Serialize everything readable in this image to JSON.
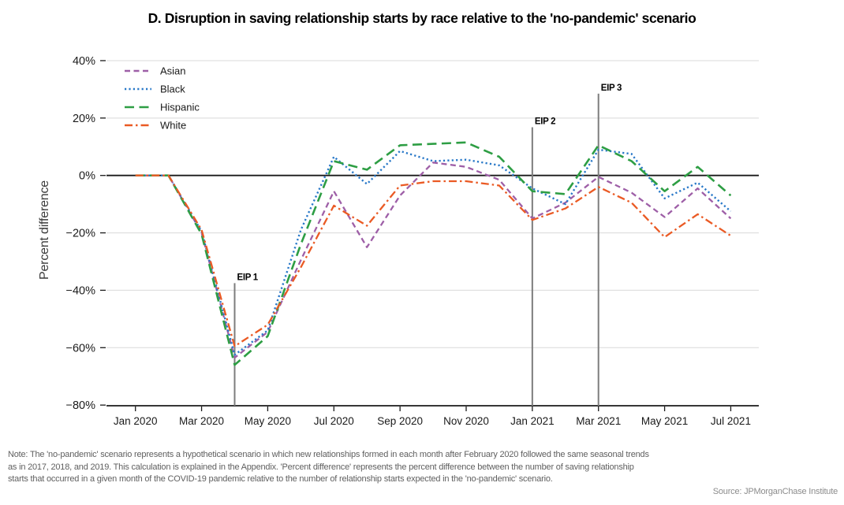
{
  "note": {
    "line1": "Note: The 'no-pandemic' scenario represents a hypothetical scenario in which new relationships formed in each month after February 2020 followed the same seasonal trends",
    "line2": "as in 2017, 2018, and 2019. This calculation is explained in the Appendix. 'Percent difference' represents the percent difference between the number of saving relationship",
    "line3": "starts that occurred in a given month of the COVID-19 pandemic relative to the number of relationship starts expected in the 'no-pandemic' scenario."
  },
  "source": "Source: JPMorganChase Institute",
  "colors": {
    "axis": "#1a1a1a",
    "grid": "#d9d9d9",
    "tick_label": "#1a1a1a",
    "annotation_line": "#7d7d7d",
    "annotation_label": "#000000",
    "note_text": "#5f5f5f",
    "source_text": "#8c8c8c"
  },
  "chart_data": {
    "type": "line",
    "title": "D. Disruption in saving relationship starts by race relative to the 'no-pandemic' scenario",
    "xlabel": "",
    "ylabel": "Percent difference",
    "ylim": [
      -80,
      40
    ],
    "y_ticks": [
      40,
      20,
      0,
      -20,
      -40,
      -60,
      -80
    ],
    "y_tick_suffix": "%",
    "grid": true,
    "legend_position": "upper-left",
    "categories": [
      "Jan 2020",
      "Feb 2020",
      "Mar 2020",
      "Apr 2020",
      "May 2020",
      "Jun 2020",
      "Jul 2020",
      "Aug 2020",
      "Sep 2020",
      "Oct 2020",
      "Nov 2020",
      "Dec 2020",
      "Jan 2021",
      "Feb 2021",
      "Mar 2021",
      "Apr 2021",
      "May 2021",
      "Jun 2021",
      "Jul 2021"
    ],
    "x_tick_labels": [
      "Jan 2020",
      "Mar 2020",
      "May 2020",
      "Jul 2020",
      "Sep 2020",
      "Nov 2020",
      "Jan 2021",
      "Mar 2021",
      "May 2021",
      "Jul 2021"
    ],
    "x_tick_indices": [
      0,
      2,
      4,
      6,
      8,
      10,
      12,
      14,
      16,
      18
    ],
    "series": [
      {
        "name": "Asian",
        "color": "#9e5fa7",
        "dash": "7 4.5",
        "width": 2.3,
        "values": [
          0,
          0,
          -20,
          -63.5,
          -54.5,
          -29.5,
          -5.5,
          -25,
          -7,
          4.5,
          3,
          -1.5,
          -15,
          -9.5,
          -0.5,
          -6,
          -14.5,
          -4.5,
          -15
        ]
      },
      {
        "name": "Black",
        "color": "#2878c8",
        "dash": "2.2 3.2",
        "width": 2.4,
        "values": [
          0,
          0,
          -19.5,
          -62.5,
          -54,
          -19,
          6.5,
          -3,
          8.5,
          5,
          5.5,
          3.5,
          -4.5,
          -10,
          9,
          7.5,
          -8,
          -2.5,
          -12.5
        ]
      },
      {
        "name": "Hispanic",
        "color": "#2e9e44",
        "dash": "12 6.5",
        "width": 2.6,
        "values": [
          0,
          0,
          -20.5,
          -66,
          -56,
          -24,
          5,
          2,
          10.5,
          11,
          11.5,
          6.5,
          -5.5,
          -6.5,
          10.5,
          5,
          -5.5,
          3,
          -7
        ]
      },
      {
        "name": "White",
        "color": "#ea5a24",
        "dash": "10 4 2.5 4",
        "width": 2.3,
        "values": [
          0,
          0,
          -19,
          -59.5,
          -52,
          -32,
          -10.5,
          -17.5,
          -3.5,
          -2,
          -2,
          -3.5,
          -15.5,
          -11.5,
          -4,
          -9.5,
          -21.5,
          -13.5,
          -21
        ]
      }
    ],
    "annotations": [
      {
        "label": "EIP 1",
        "x_index": 3,
        "top_value": -37.5
      },
      {
        "label": "EIP 2",
        "x_index": 12,
        "top_value": 16.8
      },
      {
        "label": "EIP 3",
        "x_index": 14,
        "top_value": 28.5
      }
    ]
  }
}
